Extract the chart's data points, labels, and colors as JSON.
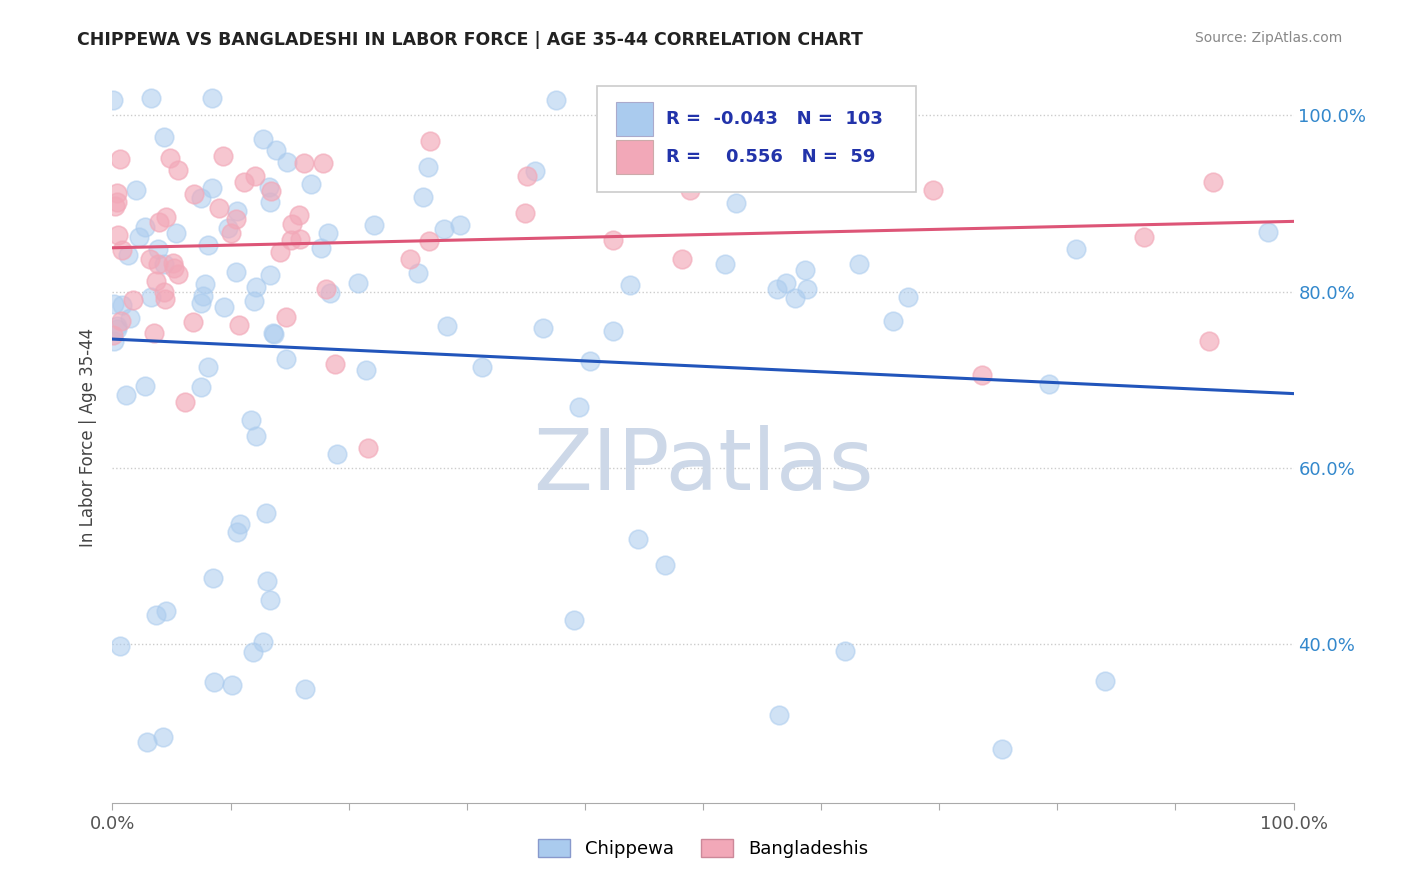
{
  "title": "CHIPPEWA VS BANGLADESHI IN LABOR FORCE | AGE 35-44 CORRELATION CHART",
  "source": "Source: ZipAtlas.com",
  "ylabel": "In Labor Force | Age 35-44",
  "legend_labels": [
    "Chippewa",
    "Bangladeshis"
  ],
  "r_chippewa": -0.043,
  "n_chippewa": 103,
  "r_bangladeshi": 0.556,
  "n_bangladeshi": 59,
  "blue_color": "#aacbee",
  "pink_color": "#f2a8b8",
  "blue_line_color": "#2255bb",
  "pink_line_color": "#dd5577",
  "title_color": "#222222",
  "source_color": "#888888",
  "watermark_color": "#cdd8e8",
  "xlim": [
    0.0,
    1.0
  ],
  "ylim": [
    0.22,
    1.05
  ],
  "ytick_positions": [
    0.4,
    0.6,
    0.8,
    1.0
  ],
  "ytick_labels": [
    "40.0%",
    "60.0%",
    "80.0%",
    "100.0%"
  ],
  "xtick_positions": [
    0.0,
    0.1,
    0.2,
    0.3,
    0.4,
    0.5,
    0.6,
    0.7,
    0.8,
    0.9,
    1.0
  ],
  "xtick_edge_labels": [
    "0.0%",
    "100.0%"
  ],
  "grid_color": "#cccccc",
  "background_color": "#ffffff",
  "chippewa_seed": 42,
  "bangladeshi_seed": 99
}
